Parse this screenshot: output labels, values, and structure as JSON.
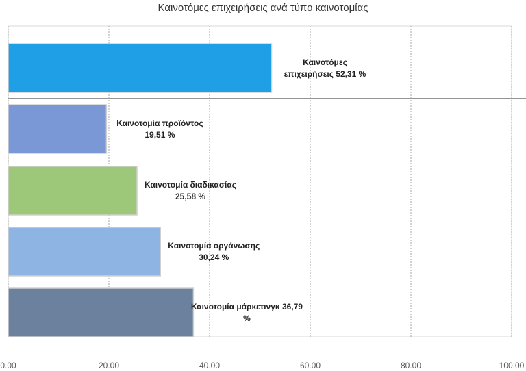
{
  "chart_data": {
    "type": "bar",
    "orientation": "horizontal",
    "title": "Καινοτόμες επιχειρήσεις ανά τύπο καινοτομίας",
    "categories": [
      "Καινοτόμες επιχειρήσεις",
      "Καινοτομία προϊόντος",
      "Καινοτομία διαδικασίας",
      "Καινοτομία οργάνωσης",
      "Καινοτομία μάρκετινγκ"
    ],
    "values": [
      52.31,
      19.51,
      25.58,
      30.24,
      36.79
    ],
    "value_labels": [
      "52,31 %",
      "19,51 %",
      "25,58 %",
      "30,24 %",
      "36,79 %"
    ],
    "colors": [
      "#1e9fe6",
      "#7b98d6",
      "#9dc87a",
      "#8db4e2",
      "#6c819e"
    ],
    "xlim": [
      0,
      100
    ],
    "xticks": [
      {
        "value": 0,
        "label": "0.00"
      },
      {
        "value": 20,
        "label": "20.00"
      },
      {
        "value": 40,
        "label": "40.00"
      },
      {
        "value": 60,
        "label": "60.00"
      },
      {
        "value": 80,
        "label": "80.00"
      },
      {
        "value": 100,
        "label": "100.00"
      }
    ],
    "grid": true
  }
}
